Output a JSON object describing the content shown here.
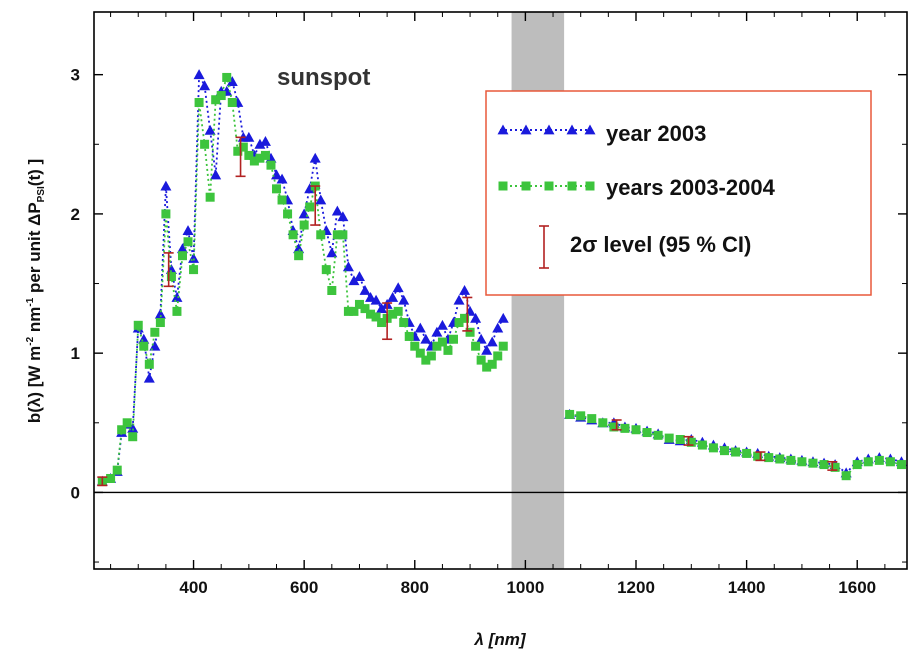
{
  "chart_data": {
    "type": "line",
    "title": "",
    "annotation": "sunspot",
    "xlabel": "λ [nm]",
    "ylabel": {
      "base": "b(λ) [W m",
      "sup1": "-2",
      "mid": " nm",
      "sup2": "-1",
      "tail": " per unit ΔP",
      "sub": "PSI",
      "end": "(t) ]"
    },
    "xlim": [
      220,
      1690
    ],
    "ylim": [
      -0.55,
      3.45
    ],
    "xticks": [
      400,
      600,
      800,
      1000,
      1200,
      1400,
      1600
    ],
    "yticks": [
      0,
      1,
      2,
      3
    ],
    "grid": false,
    "zero_line": true,
    "legend_position": "top-right",
    "shaded_band": {
      "x": [
        975,
        1070
      ],
      "color": "#bdbdbd"
    },
    "legend": {
      "series1": "year 2003",
      "series2": "years 2003-2004",
      "ci_sigma": "2σ level (95 % CI)"
    },
    "colors": {
      "series1": "#1a1adc",
      "series2": "#3dc43d",
      "errorbar": "#b22222",
      "legend_border": "#e8583a"
    },
    "series": [
      {
        "name": "year 2003",
        "marker": "triangle",
        "segments": [
          {
            "x": [
              235,
              250,
              262,
              270,
              280,
              290,
              300,
              310,
              320,
              330,
              340,
              350,
              360,
              370,
              380,
              390,
              400,
              410,
              420,
              430,
              440,
              450,
              460,
              470,
              480,
              490,
              500,
              510,
              520,
              530,
              540,
              550,
              560,
              570,
              580,
              590,
              600,
              610,
              620,
              630,
              640,
              650,
              660,
              670,
              680,
              690,
              700,
              710,
              720,
              730,
              740,
              750,
              760,
              770,
              780,
              790,
              800,
              810,
              820,
              830,
              840,
              850,
              860,
              870,
              880,
              890,
              900,
              910,
              920,
              930,
              940,
              950,
              960
            ],
            "y": [
              0.08,
              0.1,
              0.15,
              0.43,
              0.49,
              0.46,
              1.18,
              1.1,
              0.82,
              1.05,
              1.28,
              2.2,
              1.6,
              1.4,
              1.75,
              1.88,
              1.68,
              3.0,
              2.92,
              2.6,
              2.28,
              2.88,
              2.88,
              2.95,
              2.8,
              2.55,
              2.55,
              2.42,
              2.5,
              2.52,
              2.4,
              2.28,
              2.25,
              2.1,
              1.88,
              1.75,
              2.0,
              2.18,
              2.4,
              2.1,
              1.88,
              1.72,
              2.02,
              1.98,
              1.62,
              1.52,
              1.55,
              1.45,
              1.4,
              1.38,
              1.32,
              1.35,
              1.4,
              1.47,
              1.38,
              1.22,
              1.12,
              1.18,
              1.1,
              1.05,
              1.15,
              1.2,
              1.1,
              1.22,
              1.38,
              1.45,
              1.3,
              1.25,
              1.1,
              1.02,
              1.08,
              1.18,
              1.25
            ]
          },
          {
            "x": [
              1080,
              1100,
              1120,
              1140,
              1160,
              1180,
              1200,
              1220,
              1240,
              1260,
              1280,
              1300,
              1320,
              1340,
              1360,
              1380,
              1400,
              1420,
              1440,
              1460,
              1480,
              1500,
              1520,
              1540,
              1560,
              1580,
              1600,
              1620,
              1640,
              1660,
              1680
            ],
            "y": [
              0.56,
              0.54,
              0.52,
              0.5,
              0.5,
              0.47,
              0.46,
              0.44,
              0.42,
              0.38,
              0.37,
              0.38,
              0.36,
              0.34,
              0.32,
              0.3,
              0.29,
              0.28,
              0.26,
              0.25,
              0.24,
              0.23,
              0.22,
              0.21,
              0.2,
              0.14,
              0.22,
              0.24,
              0.25,
              0.24,
              0.22
            ]
          }
        ]
      },
      {
        "name": "years 2003-2004",
        "marker": "square",
        "segments": [
          {
            "x": [
              235,
              250,
              262,
              270,
              280,
              290,
              300,
              310,
              320,
              330,
              340,
              350,
              360,
              370,
              380,
              390,
              400,
              410,
              420,
              430,
              440,
              450,
              460,
              470,
              480,
              490,
              500,
              510,
              520,
              530,
              540,
              550,
              560,
              570,
              580,
              590,
              600,
              610,
              620,
              630,
              640,
              650,
              660,
              670,
              680,
              690,
              700,
              710,
              720,
              730,
              740,
              750,
              760,
              770,
              780,
              790,
              800,
              810,
              820,
              830,
              840,
              850,
              860,
              870,
              880,
              890,
              900,
              910,
              920,
              930,
              940,
              950,
              960
            ],
            "y": [
              0.08,
              0.1,
              0.16,
              0.45,
              0.5,
              0.4,
              1.2,
              1.05,
              0.92,
              1.15,
              1.22,
              2.0,
              1.55,
              1.3,
              1.7,
              1.8,
              1.6,
              2.8,
              2.5,
              2.12,
              2.82,
              2.85,
              2.98,
              2.8,
              2.45,
              2.48,
              2.42,
              2.38,
              2.4,
              2.42,
              2.35,
              2.18,
              2.1,
              2.0,
              1.85,
              1.7,
              1.92,
              2.05,
              2.2,
              1.85,
              1.6,
              1.45,
              1.85,
              1.85,
              1.3,
              1.3,
              1.35,
              1.32,
              1.28,
              1.26,
              1.22,
              1.25,
              1.28,
              1.3,
              1.22,
              1.12,
              1.05,
              1.0,
              0.95,
              0.98,
              1.05,
              1.08,
              1.02,
              1.1,
              1.22,
              1.25,
              1.15,
              1.05,
              0.95,
              0.9,
              0.92,
              0.98,
              1.05
            ]
          },
          {
            "x": [
              1080,
              1100,
              1120,
              1140,
              1160,
              1180,
              1200,
              1220,
              1240,
              1260,
              1280,
              1300,
              1320,
              1340,
              1360,
              1380,
              1400,
              1420,
              1440,
              1460,
              1480,
              1500,
              1520,
              1540,
              1560,
              1580,
              1600,
              1620,
              1640,
              1660,
              1680
            ],
            "y": [
              0.56,
              0.55,
              0.53,
              0.5,
              0.47,
              0.46,
              0.45,
              0.43,
              0.41,
              0.39,
              0.38,
              0.36,
              0.34,
              0.32,
              0.3,
              0.29,
              0.28,
              0.26,
              0.25,
              0.24,
              0.23,
              0.22,
              0.21,
              0.2,
              0.18,
              0.12,
              0.2,
              0.22,
              0.23,
              0.22,
              0.2
            ]
          }
        ]
      }
    ],
    "error_bars": [
      {
        "x": 235,
        "low": 0.05,
        "high": 0.11
      },
      {
        "x": 355,
        "low": 1.48,
        "high": 1.72
      },
      {
        "x": 485,
        "low": 2.27,
        "high": 2.55
      },
      {
        "x": 620,
        "low": 1.92,
        "high": 2.2
      },
      {
        "x": 750,
        "low": 1.1,
        "high": 1.36
      },
      {
        "x": 895,
        "low": 1.16,
        "high": 1.4
      },
      {
        "x": 1165,
        "low": 0.45,
        "high": 0.52
      },
      {
        "x": 1295,
        "low": 0.34,
        "high": 0.4
      },
      {
        "x": 1425,
        "low": 0.23,
        "high": 0.29
      },
      {
        "x": 1555,
        "low": 0.16,
        "high": 0.22
      }
    ]
  }
}
